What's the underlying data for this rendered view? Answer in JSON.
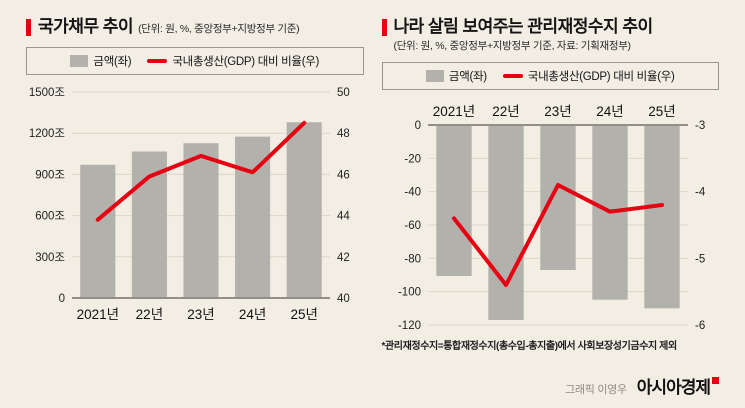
{
  "page": {
    "background": "#f2eee4",
    "credit": "그래픽 이영우",
    "brand": "아시아경제"
  },
  "colors": {
    "accent_red": "#e60012",
    "bar_gray": "#b3b1ac",
    "grid": "#dcd6ca",
    "baseline": "#84817b",
    "tick_text": "#222222",
    "category_text": "#111111"
  },
  "legend": {
    "bar_label": "금액(좌)",
    "line_label": "국내총생산(GDP) 대비 비율(우)"
  },
  "chart_data": [
    {
      "type": "bar",
      "title": "국가채무 추이",
      "subtitle": "(단위: 원, %, 중앙정부+지방정부 기준)",
      "categories": [
        "2021년",
        "22년",
        "23년",
        "24년",
        "25년"
      ],
      "series": [
        {
          "name": "금액(좌)",
          "type": "bar",
          "axis": "left",
          "values": [
            970,
            1067,
            1127,
            1175,
            1280
          ]
        },
        {
          "name": "국내총생산(GDP) 대비 비율(우)",
          "type": "line",
          "axis": "right",
          "values": [
            43.8,
            45.9,
            46.9,
            46.1,
            48.5
          ]
        }
      ],
      "left_axis": {
        "min": 0,
        "max": 1500,
        "tick_values": [
          1500,
          1200,
          900,
          600,
          300,
          0
        ],
        "tick_labels": [
          "1500조",
          "1200조",
          "900조",
          "600조",
          "300조",
          "0"
        ]
      },
      "right_axis": {
        "min": 40,
        "max": 50,
        "tick_values": [
          50,
          48,
          46,
          44,
          42,
          40
        ],
        "tick_labels": [
          "50",
          "48",
          "46",
          "44",
          "42",
          "40"
        ]
      },
      "grid": true,
      "legend_position": "top"
    },
    {
      "type": "bar",
      "title": "나라 살림 보여주는 관리재정수지 추이",
      "subtitle": "(단위: 원, %, 중앙정부+지방정부 기준, 자료: 기획재정부)",
      "categories": [
        "2021년",
        "22년",
        "23년",
        "24년",
        "25년"
      ],
      "series": [
        {
          "name": "금액(좌)",
          "type": "bar",
          "axis": "left",
          "values": [
            -90.6,
            -117,
            -87,
            -104.8,
            -110
          ]
        },
        {
          "name": "국내총생산(GDP) 대비 비율(우)",
          "type": "line",
          "axis": "right",
          "values": [
            -4.4,
            -5.4,
            -3.9,
            -4.3,
            -4.2
          ]
        }
      ],
      "left_axis": {
        "min": -120,
        "max": 0,
        "tick_values": [
          0,
          -20,
          -40,
          -60,
          -80,
          -100,
          -120
        ],
        "tick_labels": [
          "0",
          "-20",
          "-40",
          "-60",
          "-80",
          "-100",
          "-120"
        ]
      },
      "right_axis": {
        "min": -6,
        "max": -3,
        "tick_values": [
          -3,
          -4,
          -5,
          -6
        ],
        "tick_labels": [
          "-3",
          "-4",
          "-5",
          "-6"
        ]
      },
      "grid": true,
      "legend_position": "top",
      "footnote": "*관리재정수지=통합재정수지(총수입-총지출)에서 사회보장성기금수지 제외"
    }
  ]
}
